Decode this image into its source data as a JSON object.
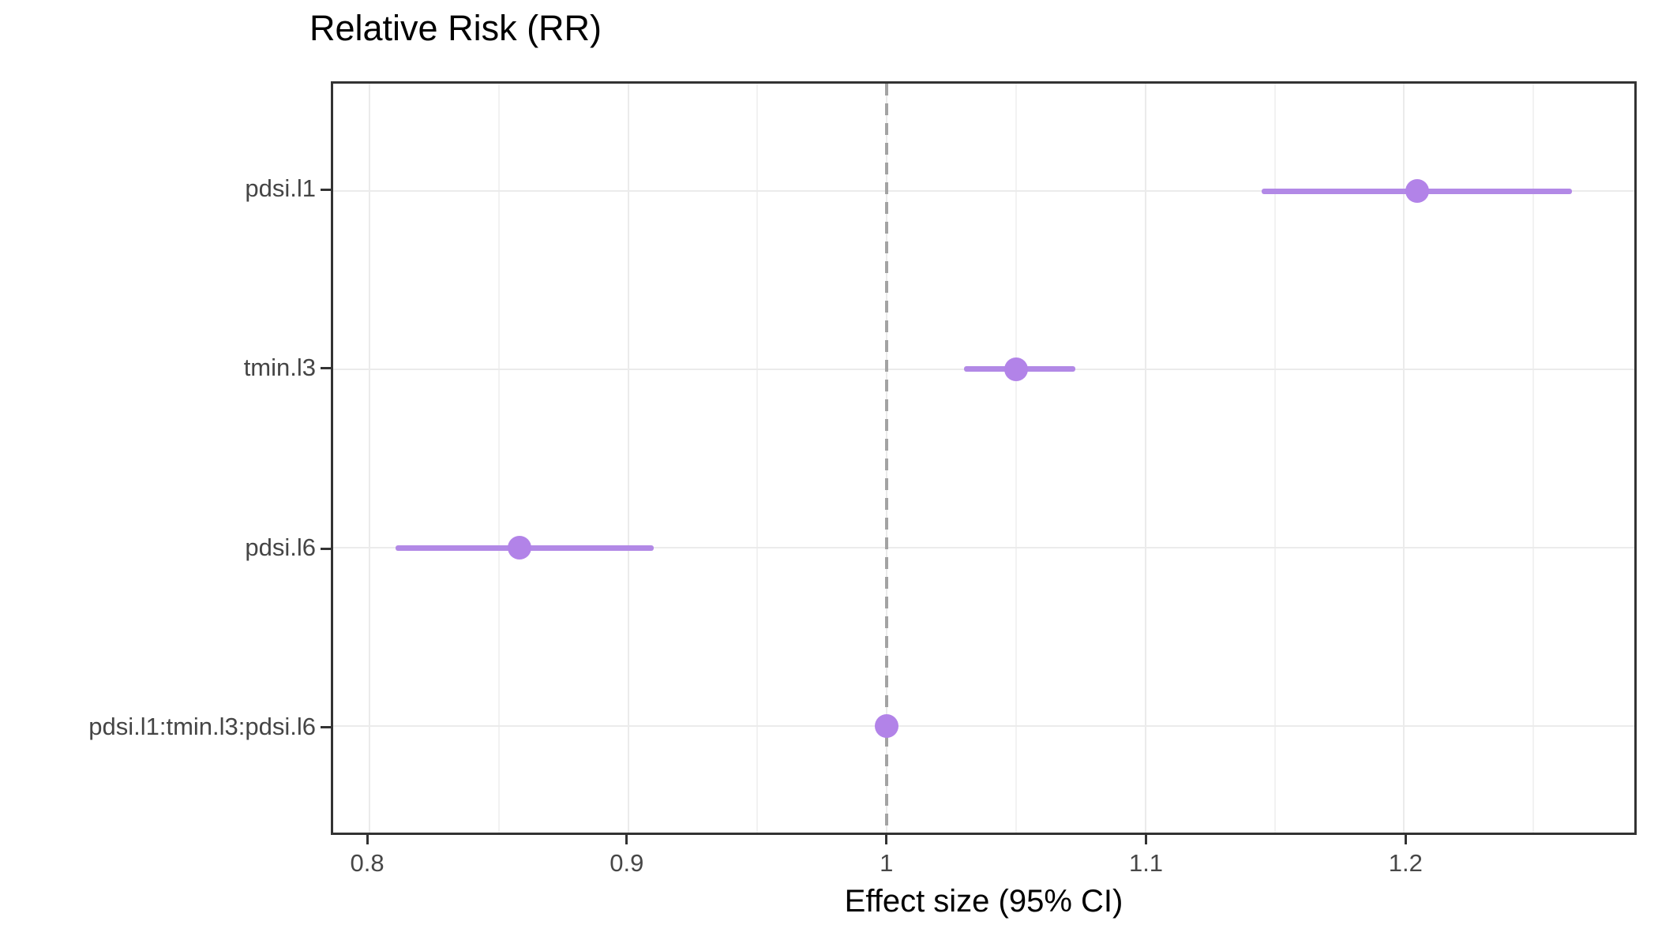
{
  "figure": {
    "title": "Relative Risk (RR)",
    "x_axis_label": "Effect size (95% CI)"
  },
  "chart_data": {
    "type": "scatter",
    "variant": "forest-pointrange",
    "title": "Relative Risk (RR)",
    "xlabel": "Effect size (95% CI)",
    "ylabel": "",
    "xlim": [
      0.786,
      1.289
    ],
    "x_major_ticks": [
      0.8,
      0.9,
      1.0,
      1.1,
      1.2
    ],
    "x_major_tick_labels": [
      "0.8",
      "0.9",
      "1",
      "1.1",
      "1.2"
    ],
    "x_minor_ticks": [
      0.85,
      0.95,
      1.05,
      1.15,
      1.25
    ],
    "reference_line_x": 1.0,
    "grid": true,
    "legend": false,
    "rows": [
      {
        "label": "pdsi.l1",
        "estimate": 1.205,
        "ci_low": 1.145,
        "ci_high": 1.265
      },
      {
        "label": "tmin.l3",
        "estimate": 1.05,
        "ci_low": 1.03,
        "ci_high": 1.073
      },
      {
        "label": "pdsi.l6",
        "estimate": 0.858,
        "ci_low": 0.81,
        "ci_high": 0.91
      },
      {
        "label": "pdsi.l1:tmin.l3:pdsi.l6",
        "estimate": 1.0,
        "ci_low": 0.997,
        "ci_high": 1.003
      }
    ],
    "row_fractions": [
      0.1435,
      0.381,
      0.62,
      0.8575
    ],
    "colors": {
      "point": "#b283e8",
      "ci_line": "#b289e6",
      "reference_line": "#a3a3a3",
      "grid_major": "#ebebeb",
      "grid_minor": "#f2f2f2",
      "panel_border": "#333333",
      "tick": "#333333",
      "tick_label": "#474747",
      "axis_title": "#000000",
      "title": "#000000"
    }
  }
}
